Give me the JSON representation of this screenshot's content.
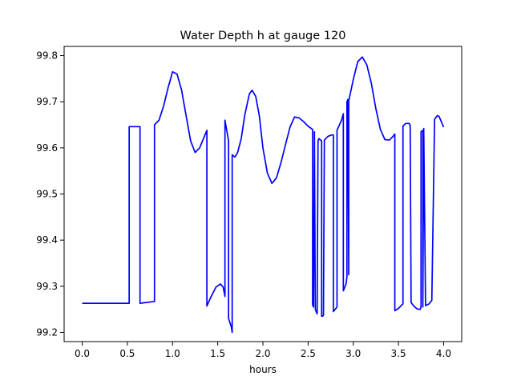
{
  "chart_data": {
    "type": "line",
    "title": "Water Depth h at gauge 120",
    "xlabel": "hours",
    "ylabel": "",
    "xlim": [
      -0.2,
      4.2
    ],
    "ylim": [
      99.18,
      99.82
    ],
    "grid": false,
    "xticks": [
      0.0,
      0.5,
      1.0,
      1.5,
      2.0,
      2.5,
      3.0,
      3.5,
      4.0
    ],
    "xtick_labels": [
      "0.0",
      "0.5",
      "1.0",
      "1.5",
      "2.0",
      "2.5",
      "3.0",
      "3.5",
      "4.0"
    ],
    "yticks": [
      99.2,
      99.3,
      99.4,
      99.5,
      99.6,
      99.7,
      99.8
    ],
    "ytick_labels": [
      "99.2",
      "99.3",
      "99.4",
      "99.5",
      "99.6",
      "99.7",
      "99.8"
    ],
    "series": [
      {
        "color": "#0000ff",
        "x": [
          0.0,
          0.52,
          0.52,
          0.64,
          0.64,
          0.8,
          0.8,
          0.85,
          0.9,
          0.95,
          1.0,
          1.05,
          1.1,
          1.15,
          1.2,
          1.25,
          1.3,
          1.38,
          1.38,
          1.42,
          1.48,
          1.53,
          1.56,
          1.58,
          1.58,
          1.62,
          1.62,
          1.65,
          1.66,
          1.66,
          1.69,
          1.72,
          1.76,
          1.8,
          1.85,
          1.88,
          1.92,
          1.96,
          2.0,
          2.05,
          2.1,
          2.15,
          2.2,
          2.25,
          2.3,
          2.35,
          2.4,
          2.45,
          2.5,
          2.55,
          2.55,
          2.56,
          2.57,
          2.57,
          2.58,
          2.59,
          2.6,
          2.61,
          2.62,
          2.62,
          2.65,
          2.65,
          2.66,
          2.67,
          2.68,
          2.68,
          2.72,
          2.76,
          2.78,
          2.78,
          2.82,
          2.82,
          2.87,
          2.89,
          2.89,
          2.92,
          2.93,
          2.93,
          2.94,
          2.95,
          2.95,
          3.0,
          3.05,
          3.1,
          3.15,
          3.2,
          3.25,
          3.3,
          3.35,
          3.4,
          3.44,
          3.46,
          3.46,
          3.5,
          3.55,
          3.55,
          3.58,
          3.62,
          3.63,
          3.64,
          3.64,
          3.67,
          3.7,
          3.72,
          3.74,
          3.75,
          3.75,
          3.77,
          3.77,
          3.78,
          3.8,
          3.84,
          3.87,
          3.87,
          3.9,
          3.93,
          3.95,
          4.0
        ],
        "values": [
          99.263,
          99.263,
          99.646,
          99.646,
          99.263,
          99.267,
          99.65,
          99.66,
          99.69,
          99.73,
          99.765,
          99.76,
          99.725,
          99.67,
          99.615,
          99.59,
          99.6,
          99.638,
          99.257,
          99.275,
          99.298,
          99.305,
          99.298,
          99.278,
          99.66,
          99.615,
          99.23,
          99.212,
          99.2,
          99.585,
          99.58,
          99.59,
          99.62,
          99.672,
          99.717,
          99.725,
          99.712,
          99.67,
          99.6,
          99.545,
          99.523,
          99.535,
          99.568,
          99.607,
          99.645,
          99.667,
          99.665,
          99.657,
          99.647,
          99.64,
          99.26,
          99.255,
          99.63,
          99.635,
          99.25,
          99.245,
          99.24,
          99.615,
          99.62,
          99.62,
          99.615,
          99.235,
          99.235,
          99.237,
          99.617,
          99.617,
          99.625,
          99.628,
          99.628,
          99.245,
          99.255,
          99.638,
          99.66,
          99.674,
          99.29,
          99.305,
          99.32,
          99.7,
          99.705,
          99.325,
          99.702,
          99.748,
          99.787,
          99.797,
          99.78,
          99.74,
          99.685,
          99.64,
          99.618,
          99.617,
          99.625,
          99.63,
          99.247,
          99.252,
          99.262,
          99.647,
          99.653,
          99.653,
          99.648,
          99.265,
          99.265,
          99.257,
          99.252,
          99.25,
          99.25,
          99.255,
          99.635,
          99.638,
          99.255,
          99.642,
          99.258,
          99.262,
          99.27,
          99.278,
          99.662,
          99.67,
          99.668,
          99.645
        ]
      }
    ]
  }
}
